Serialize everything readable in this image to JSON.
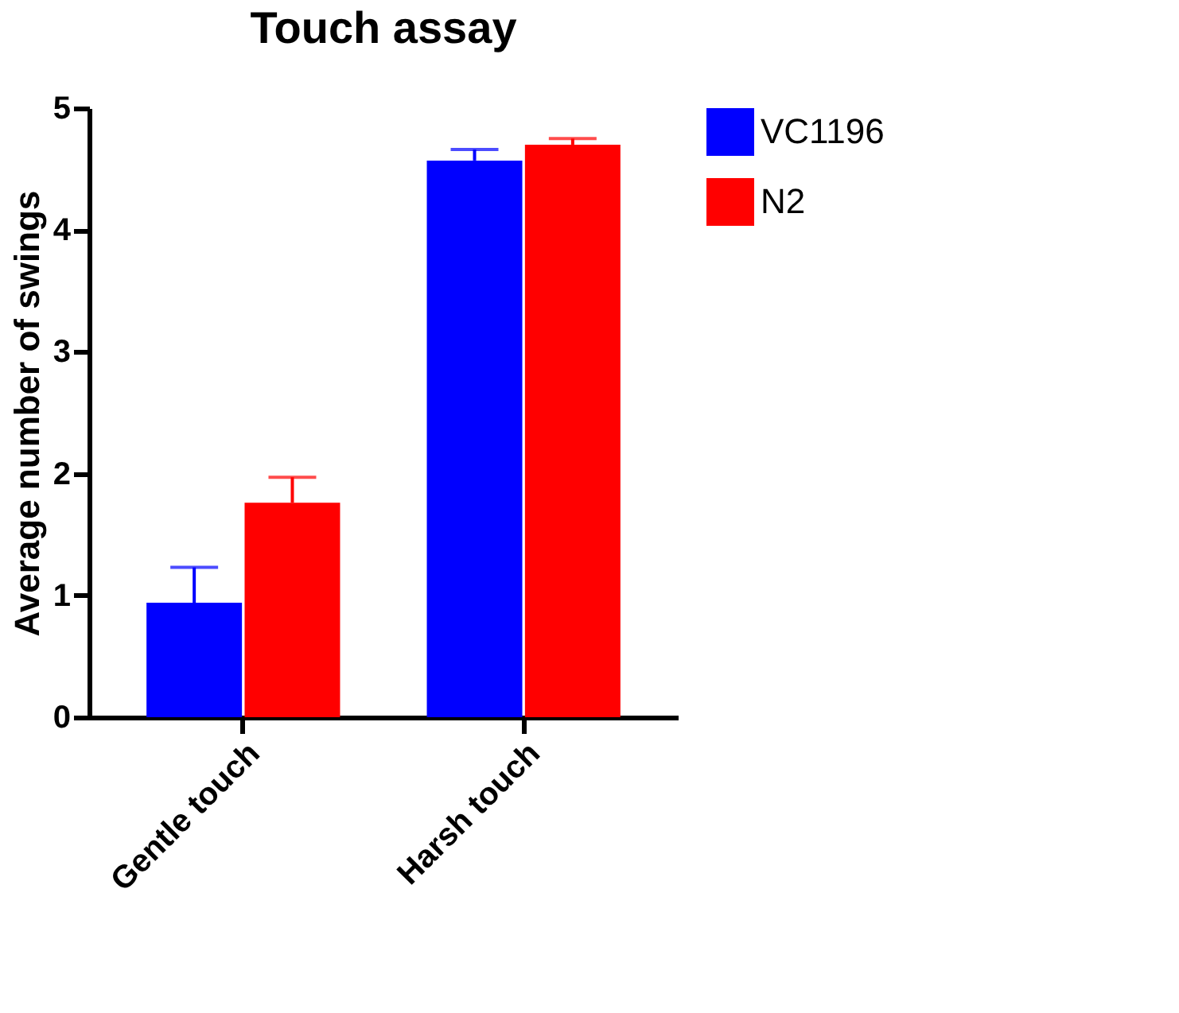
{
  "chart_data": {
    "type": "bar",
    "title": "Touch assay",
    "ylabel": "Average number of swings",
    "categories": [
      "Gentle touch",
      "Harsh touch"
    ],
    "series": [
      {
        "name": "VC1196",
        "color": "#0000ff",
        "values": [
          0.94,
          4.57
        ],
        "errors": [
          [
            0.94,
            1.23
          ],
          [
            4.57,
            4.66
          ]
        ]
      },
      {
        "name": "N2",
        "color": "#ff0000",
        "values": [
          1.76,
          4.7
        ],
        "errors": [
          [
            1.76,
            1.97
          ],
          [
            4.7,
            4.75
          ]
        ]
      }
    ],
    "ylim": [
      0,
      5
    ],
    "yticks": [
      0,
      1,
      2,
      3,
      4,
      5
    ],
    "grid": false,
    "legend": "top right"
  }
}
